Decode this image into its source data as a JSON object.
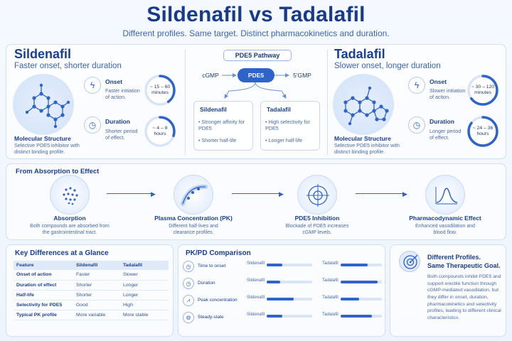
{
  "header": {
    "title": "Sildenafil vs Tadalafil",
    "subtitle": "Different profiles. Same target. Distinct pharmacokinetics and duration."
  },
  "sildenafil": {
    "name": "Sildenafil",
    "tagline": "Faster onset, shorter duration",
    "mol_label": "Molecular Structure",
    "mol_desc": "Selective PDE5 inhibitor with distinct binding profile.",
    "onset_label": "Onset",
    "onset_desc": "Faster initiation of action.",
    "onset_value": "~ 15 – 60 minutes",
    "onset_fill": 0.4,
    "duration_label": "Duration",
    "duration_desc": "Shorter period of effect.",
    "duration_value": "~ 4 – 8 hours",
    "duration_fill": 0.3
  },
  "tadalafil": {
    "name": "Tadalafil",
    "tagline": "Slower onset, longer duration",
    "mol_label": "Molecular Structure",
    "mol_desc": "Selective PDE5 inhibitor with distinct binding profile.",
    "onset_label": "Onset",
    "onset_desc": "Slower initiation of action.",
    "onset_value": "~ 30 – 120 minutes",
    "onset_fill": 0.65,
    "duration_label": "Duration",
    "duration_desc": "Longer period of effect.",
    "duration_value": "~ 24 – 36 hours",
    "duration_fill": 0.85
  },
  "pathway": {
    "title": "PDE5 Pathway",
    "left": "cGMP",
    "center": "PDE5",
    "right": "5'GMP",
    "sildenafil_title": "Sildenafil",
    "sildenafil_b1": "Stronger affinity for PDE5",
    "sildenafil_b2": "Shorter half-life",
    "tadalafil_title": "Tadalafil",
    "tadalafil_b1": "High selectivity for PDE5",
    "tadalafil_b2": "Longer half-life"
  },
  "flow": {
    "title": "From Absorption to Effect",
    "steps": [
      {
        "label": "Absorption",
        "desc": "Both compounds are absorbed from the gastrointestinal tract."
      },
      {
        "label": "Plasma Concentration (PK)",
        "desc": "Different half-lives and clearance profiles."
      },
      {
        "label": "PDE5 Inhibition",
        "desc": "Blockade of PDE5 increases cGMP levels."
      },
      {
        "label": "Pharmacodynamic Effect",
        "desc": "Enhanced vasodilation and blood flow."
      }
    ]
  },
  "differences": {
    "title": "Key Differences at a Glance",
    "headers": [
      "Feature",
      "Sildenafil",
      "Tadalafil"
    ],
    "rows": [
      [
        "Onset of action",
        "Faster",
        "Slower"
      ],
      [
        "Duration of effect",
        "Shorter",
        "Longer"
      ],
      [
        "Half-life",
        "Shorter",
        "Longer"
      ],
      [
        "Selectivity for PDE5",
        "Good",
        "High"
      ],
      [
        "Typical PK profile",
        "More variable",
        "More stable"
      ]
    ]
  },
  "pkpd": {
    "title": "PK/PD Comparison",
    "drug_a": "Sildenafil",
    "drug_b": "Tadalafil",
    "rows": [
      {
        "label": "Time to onset",
        "a": 0.35,
        "b": 0.65
      },
      {
        "label": "Duration",
        "a": 0.3,
        "b": 0.9
      },
      {
        "label": "Peak concentration",
        "a": 0.6,
        "b": 0.45
      },
      {
        "label": "Steady-state",
        "a": 0.35,
        "b": 0.75
      }
    ]
  },
  "summary": {
    "title_line1": "Different Profiles.",
    "title_line2": "Same Therapeutic Goal.",
    "text": "Both compounds inhibit PDE5 and support erectile function through cGMP-mediated vasodilation, but they differ in onset, duration, pharmacokinetics and selectivity profiles, leading to different clinical characteristics."
  },
  "colors": {
    "accent": "#2e63c9",
    "title": "#173a8a",
    "track": "#d9e4f5"
  }
}
